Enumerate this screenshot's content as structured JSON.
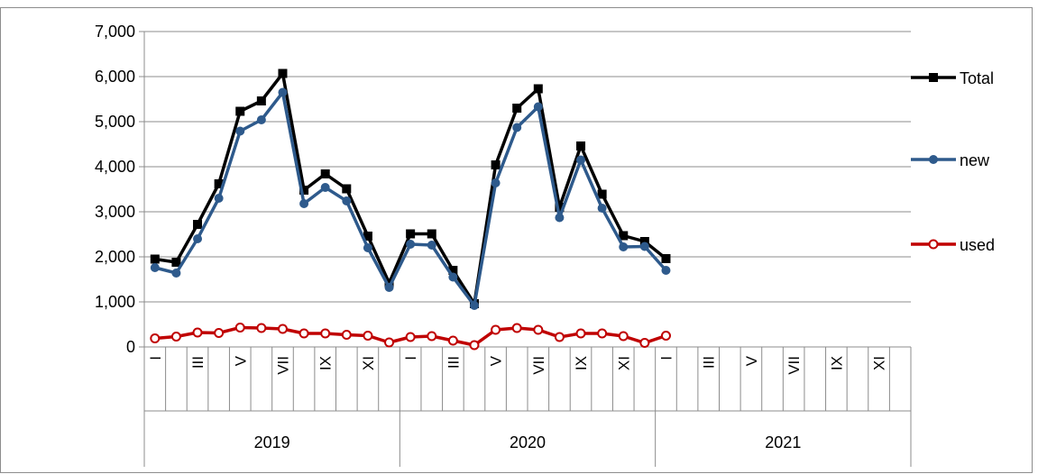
{
  "chart_data": {
    "type": "line",
    "title": "",
    "xlabel": "",
    "ylabel": "",
    "ylim": [
      0,
      7000
    ],
    "y_ticks": [
      0,
      1000,
      2000,
      3000,
      4000,
      5000,
      6000,
      7000
    ],
    "y_tick_labels": [
      "0",
      "1,000",
      "2,000",
      "3,000",
      "4,000",
      "5,000",
      "6,000",
      "7,000"
    ],
    "grid": true,
    "legend_position": "right",
    "month_labels": [
      "I",
      "",
      "III",
      "",
      "V",
      "",
      "VII",
      "",
      "IX",
      "",
      "XI",
      "",
      "I",
      "",
      "III",
      "",
      "V",
      "",
      "VII",
      "",
      "IX",
      "",
      "XI",
      "",
      "I",
      "",
      "III",
      "",
      "V",
      "",
      "VII",
      "",
      "IX",
      "",
      "XI",
      ""
    ],
    "years": [
      "2019",
      "2020",
      "2021"
    ],
    "series": [
      {
        "name": "Total",
        "color": "#000000",
        "marker": "square",
        "values": [
          1950,
          1880,
          2720,
          3620,
          5230,
          5460,
          6070,
          3480,
          3840,
          3510,
          2460,
          1420,
          2510,
          2510,
          1700,
          960,
          4040,
          5300,
          5730,
          3100,
          4460,
          3390,
          2470,
          2340,
          1960
        ]
      },
      {
        "name": "new",
        "color": "#2e5a8c",
        "marker": "circle",
        "values": [
          1760,
          1640,
          2400,
          3300,
          4790,
          5040,
          5650,
          3180,
          3540,
          3240,
          2200,
          1320,
          2280,
          2260,
          1550,
          920,
          3640,
          4870,
          5330,
          2870,
          4150,
          3080,
          2220,
          2230,
          1700
        ]
      },
      {
        "name": "used",
        "color": "#c00000",
        "marker": "hollow-circle",
        "values": [
          190,
          230,
          320,
          310,
          430,
          420,
          400,
          300,
          300,
          270,
          250,
          100,
          220,
          240,
          140,
          40,
          380,
          420,
          380,
          220,
          300,
          300,
          240,
          90,
          250
        ]
      }
    ]
  }
}
